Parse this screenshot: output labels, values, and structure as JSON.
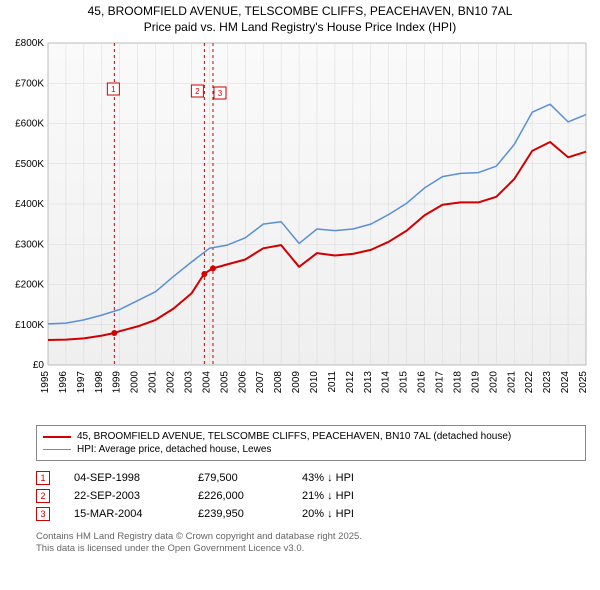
{
  "title_line1": "45, BROOMFIELD AVENUE, TELSCOMBE CLIFFS, PEACEHAVEN, BN10 7AL",
  "title_line2": "Price paid vs. HM Land Registry's House Price Index (HPI)",
  "chart": {
    "type": "line",
    "background_color": "#ffffff",
    "plot_background_gradient": [
      "#fafafa",
      "#efefef"
    ],
    "grid_color": "#d8d8d8",
    "axis_font_size": 10,
    "ylim": [
      0,
      800
    ],
    "ytick_step": 100,
    "ytick_prefix": "£",
    "ytick_suffix": "K",
    "yticks": [
      "£0",
      "£100K",
      "£200K",
      "£300K",
      "£400K",
      "£500K",
      "£600K",
      "£700K",
      "£800K"
    ],
    "xlim": [
      1995,
      2025
    ],
    "xticks": [
      1995,
      1996,
      1997,
      1998,
      1999,
      2000,
      2001,
      2002,
      2003,
      2004,
      2005,
      2006,
      2007,
      2008,
      2009,
      2010,
      2011,
      2012,
      2013,
      2014,
      2015,
      2016,
      2017,
      2018,
      2019,
      2020,
      2021,
      2022,
      2023,
      2024,
      2025
    ],
    "series": [
      {
        "name": "property",
        "label": "45, BROOMFIELD AVENUE, TELSCOMBE CLIFFS, PEACEHAVEN, BN10 7AL (detached house)",
        "color": "#d00000",
        "line_width": 2,
        "values_by_year": {
          "1995": 62,
          "1996": 63,
          "1997": 66,
          "1998": 73,
          "1998.7": 79.5,
          "1999": 84,
          "2000": 96,
          "2001": 112,
          "2002": 140,
          "2003": 178,
          "2003.7": 226,
          "2004": 235,
          "2004.2": 239.95,
          "2005": 250,
          "2006": 262,
          "2007": 290,
          "2008": 298,
          "2009": 244,
          "2010": 278,
          "2011": 272,
          "2012": 276,
          "2013": 286,
          "2014": 306,
          "2015": 334,
          "2016": 372,
          "2017": 398,
          "2018": 404,
          "2019": 404,
          "2020": 418,
          "2021": 462,
          "2022": 532,
          "2023": 554,
          "2024": 516,
          "2025": 530
        }
      },
      {
        "name": "hpi",
        "label": "HPI: Average price, detached house, Lewes",
        "color": "#5a8fd6",
        "line_width": 1.5,
        "values_by_year": {
          "1995": 102,
          "1996": 104,
          "1997": 112,
          "1998": 124,
          "1999": 138,
          "2000": 160,
          "2001": 182,
          "2002": 220,
          "2003": 256,
          "2004": 290,
          "2005": 298,
          "2006": 316,
          "2007": 350,
          "2008": 356,
          "2009": 302,
          "2010": 338,
          "2011": 334,
          "2012": 338,
          "2013": 350,
          "2014": 374,
          "2015": 402,
          "2016": 440,
          "2017": 468,
          "2018": 476,
          "2019": 478,
          "2020": 494,
          "2021": 548,
          "2022": 628,
          "2023": 648,
          "2024": 604,
          "2025": 622
        }
      }
    ],
    "event_lines": [
      {
        "id": 1,
        "year": 1998.7,
        "color": "#d00000",
        "dash": "3,3"
      },
      {
        "id": 2,
        "year": 2003.72,
        "color": "#d00000",
        "dash": "3,3"
      },
      {
        "id": 3,
        "year": 2004.2,
        "color": "#d00000",
        "dash": "3,3"
      }
    ]
  },
  "legend": {
    "border_color": "#888888",
    "items": [
      {
        "color": "#d00000",
        "width": 2,
        "label": "45, BROOMFIELD AVENUE, TELSCOMBE CLIFFS, PEACEHAVEN, BN10 7AL (detached house)"
      },
      {
        "color": "#5a8fd6",
        "width": 1.5,
        "label": "HPI: Average price, detached house, Lewes"
      }
    ]
  },
  "sales": [
    {
      "marker": "1",
      "date": "04-SEP-1998",
      "price": "£79,500",
      "pct": "43% ↓ HPI"
    },
    {
      "marker": "2",
      "date": "22-SEP-2003",
      "price": "£226,000",
      "pct": "21% ↓ HPI"
    },
    {
      "marker": "3",
      "date": "15-MAR-2004",
      "price": "£239,950",
      "pct": "20% ↓ HPI"
    }
  ],
  "footer_line1": "Contains HM Land Registry data © Crown copyright and database right 2025.",
  "footer_line2": "This data is licensed under the Open Government Licence v3.0."
}
